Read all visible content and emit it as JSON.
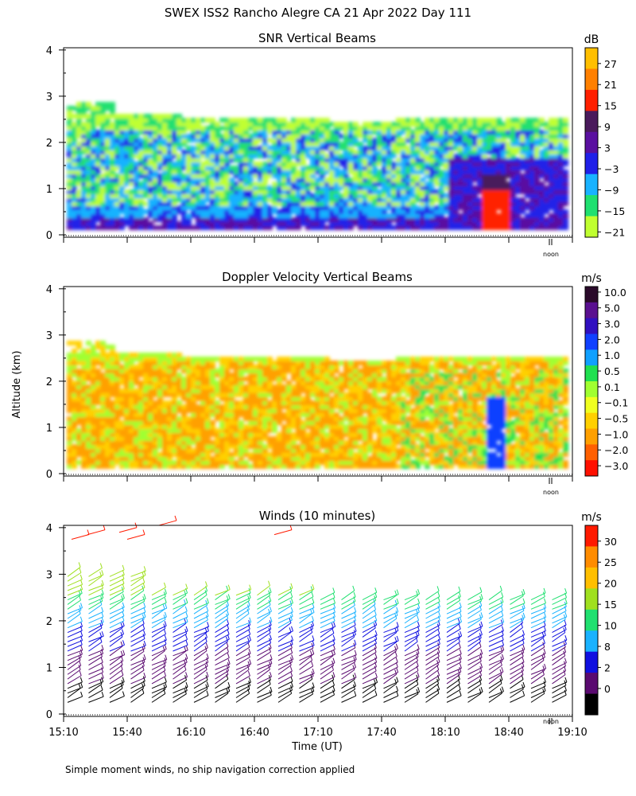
{
  "title": "SWEX ISS2 Rancho Alegre CA  21 Apr 2022 Day 111",
  "ylabel": "Altitude (km)",
  "xlabel": "Time (UT)",
  "footnote": "Simple moment winds, no ship navigation correction applied",
  "noon_label": "noon",
  "x_ticks": [
    "15:10",
    "15:40",
    "16:10",
    "16:40",
    "17:10",
    "17:40",
    "18:10",
    "18:40",
    "19:10"
  ],
  "y_ticks": [
    "0",
    "1",
    "2",
    "3",
    "4"
  ],
  "panels": [
    {
      "title": "SNR Vertical Beams",
      "unit": "dB",
      "colorbar_labels": [
        "27",
        "21",
        "15",
        "9",
        "3",
        "−3",
        "−9",
        "−15",
        "−21"
      ],
      "colorbar_colors": [
        "#ffbf00",
        "#ff8000",
        "#ff2000",
        "#4a1a5c",
        "#5a10a0",
        "#2020e8",
        "#19b2ff",
        "#20e070",
        "#c0ff30"
      ]
    },
    {
      "title": "Doppler Velocity Vertical Beams",
      "unit": "m/s",
      "colorbar_labels": [
        "10.0",
        "5.0",
        "3.0",
        "2.0",
        "1.0",
        "0.5",
        "0.1",
        "−0.1",
        "−0.5",
        "−1.0",
        "−2.0",
        "−3.0"
      ],
      "colorbar_colors": [
        "#2a0a2a",
        "#5a1090",
        "#3010c0",
        "#1040ff",
        "#10a0ff",
        "#20e050",
        "#a0ff30",
        "#f0ff20",
        "#ffd000",
        "#ffa000",
        "#ff6000",
        "#ff1000"
      ]
    },
    {
      "title": "Winds (10 minutes)",
      "unit": "m/s",
      "colorbar_labels": [
        "30",
        "25",
        "20",
        "15",
        "10",
        "8",
        "2",
        "0"
      ],
      "colorbar_colors": [
        "#ff1a00",
        "#ff8c00",
        "#ffbf00",
        "#a0e020",
        "#20e070",
        "#19b2ff",
        "#1010e0",
        "#5a0a70",
        "#000000"
      ]
    }
  ],
  "chart_data": [
    {
      "type": "heatmap",
      "title": "SNR Vertical Beams",
      "unit": "dB",
      "x_range": [
        "15:10",
        "19:10"
      ],
      "ylim": [
        0,
        4
      ],
      "ylabel": "Altitude (km)",
      "color_levels": [
        -21,
        -15,
        -9,
        -3,
        3,
        9,
        15,
        21,
        27
      ]
    },
    {
      "type": "heatmap",
      "title": "Doppler Velocity Vertical Beams",
      "unit": "m/s",
      "x_range": [
        "15:10",
        "19:10"
      ],
      "ylim": [
        0,
        4
      ],
      "ylabel": "Altitude (km)",
      "color_levels": [
        -3.0,
        -2.0,
        -1.0,
        -0.5,
        -0.1,
        0.1,
        0.5,
        1.0,
        2.0,
        3.0,
        5.0,
        10.0
      ]
    },
    {
      "type": "scatter",
      "title": "Winds (10 minutes)",
      "unit": "m/s",
      "x_range": [
        "15:10",
        "19:10"
      ],
      "ylim": [
        0,
        4
      ],
      "xlabel": "Time (UT)",
      "ylabel": "Altitude (km)",
      "color_levels": [
        0,
        2,
        8,
        10,
        15,
        20,
        25,
        30
      ]
    }
  ]
}
